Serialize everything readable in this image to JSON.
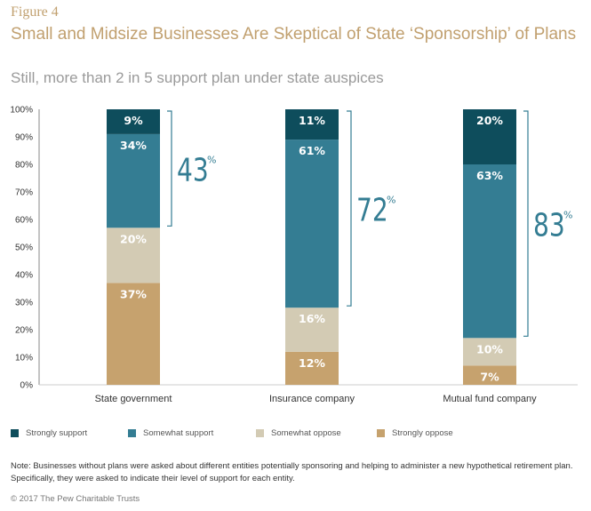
{
  "figure_label": "Figure 4",
  "title": "Small and Midsize Businesses Are Skeptical of State ‘Sponsorship’ of Plans",
  "subtitle": "Still, more than 2 in 5 support plan under state auspices",
  "note": "Note: Businesses without plans were asked about different entities potentially sponsoring and helping to administer a new hypothetical retirement plan. Specifically, they were asked to indicate their level of support for each entity.",
  "copyright": "© 2017 The Pew Charitable Trusts",
  "colors": {
    "strongly_support": "#0e4d5c",
    "somewhat_support": "#347d93",
    "somewhat_oppose": "#d3cbb4",
    "strongly_oppose": "#c6a26e",
    "bracket": "#347d93"
  },
  "chart_data": {
    "type": "bar",
    "stacked": true,
    "categories": [
      "State government",
      "Insurance company",
      "Mutual fund company"
    ],
    "series": [
      {
        "name": "Strongly oppose",
        "values": [
          37,
          12,
          7
        ],
        "color": "#c6a26e"
      },
      {
        "name": "Somewhat oppose",
        "values": [
          20,
          16,
          10
        ],
        "color": "#d3cbb4"
      },
      {
        "name": "Somewhat support",
        "values": [
          34,
          61,
          63
        ],
        "color": "#347d93"
      },
      {
        "name": "Strongly support",
        "values": [
          9,
          11,
          20
        ],
        "color": "#0e4d5c"
      }
    ],
    "value_labels": [
      [
        "37%",
        "20%",
        "34%",
        "9%"
      ],
      [
        "12%",
        "16%",
        "61%",
        "11%"
      ],
      [
        "7%",
        "10%",
        "63%",
        "20%"
      ]
    ],
    "total_support": [
      43,
      72,
      83
    ],
    "total_support_suffix": "%",
    "yticks": [
      "0%",
      "10%",
      "20%",
      "30%",
      "40%",
      "50%",
      "60%",
      "70%",
      "80%",
      "90%",
      "100%"
    ],
    "ylim": [
      0,
      100
    ],
    "grid": false,
    "legend_position": "bottom",
    "legend": [
      {
        "name": "Strongly support",
        "color": "#0e4d5c"
      },
      {
        "name": "Somewhat support",
        "color": "#347d93"
      },
      {
        "name": "Somewhat oppose",
        "color": "#d3cbb4"
      },
      {
        "name": "Strongly oppose",
        "color": "#c6a26e"
      }
    ]
  }
}
